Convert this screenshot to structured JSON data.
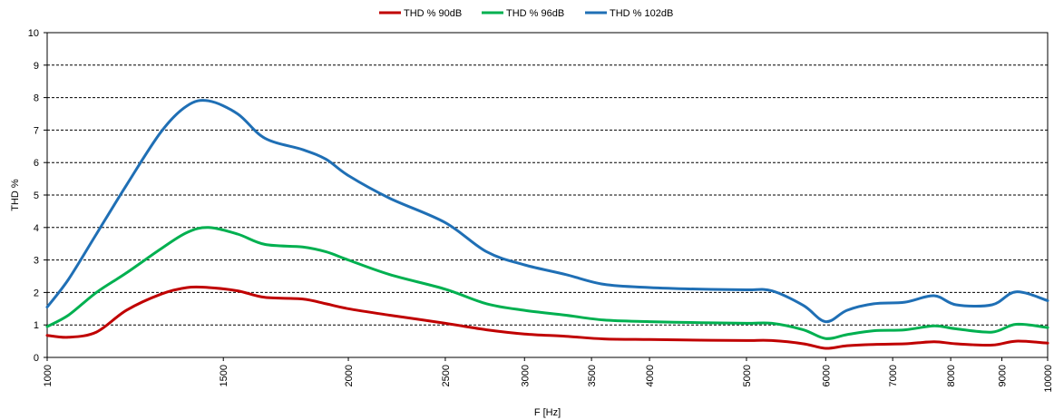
{
  "chart_data": {
    "type": "line",
    "xlabel": "F [Hz]",
    "ylabel": "THD %",
    "xscale": "log",
    "xlim": [
      1000,
      10000
    ],
    "ylim": [
      0,
      10
    ],
    "xticks": [
      1000,
      1500,
      2000,
      2500,
      3000,
      3500,
      4000,
      5000,
      6000,
      7000,
      8000,
      9000,
      10000
    ],
    "yticks": [
      0,
      1,
      2,
      3,
      4,
      5,
      6,
      7,
      8,
      9,
      10
    ],
    "grid": "horizontal dashed",
    "legend": "top-center",
    "series": [
      {
        "name": "THD % 90dB",
        "color": "#c00000",
        "points": [
          [
            1000,
            0.68
          ],
          [
            1050,
            0.62
          ],
          [
            1120,
            0.78
          ],
          [
            1200,
            1.45
          ],
          [
            1300,
            1.95
          ],
          [
            1380,
            2.15
          ],
          [
            1450,
            2.15
          ],
          [
            1550,
            2.05
          ],
          [
            1650,
            1.85
          ],
          [
            1800,
            1.8
          ],
          [
            1900,
            1.65
          ],
          [
            2000,
            1.5
          ],
          [
            2200,
            1.3
          ],
          [
            2500,
            1.05
          ],
          [
            2750,
            0.85
          ],
          [
            3000,
            0.72
          ],
          [
            3300,
            0.65
          ],
          [
            3600,
            0.57
          ],
          [
            4000,
            0.55
          ],
          [
            4500,
            0.53
          ],
          [
            5000,
            0.52
          ],
          [
            5300,
            0.52
          ],
          [
            5700,
            0.42
          ],
          [
            6000,
            0.28
          ],
          [
            6300,
            0.36
          ],
          [
            6700,
            0.4
          ],
          [
            7200,
            0.42
          ],
          [
            7700,
            0.48
          ],
          [
            8100,
            0.42
          ],
          [
            8800,
            0.38
          ],
          [
            9300,
            0.5
          ],
          [
            10000,
            0.44
          ]
        ]
      },
      {
        "name": "THD % 96dB",
        "color": "#00b050",
        "points": [
          [
            1000,
            0.95
          ],
          [
            1050,
            1.3
          ],
          [
            1120,
            2.0
          ],
          [
            1200,
            2.6
          ],
          [
            1300,
            3.35
          ],
          [
            1380,
            3.85
          ],
          [
            1450,
            4.0
          ],
          [
            1550,
            3.8
          ],
          [
            1650,
            3.48
          ],
          [
            1800,
            3.4
          ],
          [
            1900,
            3.25
          ],
          [
            2000,
            3.0
          ],
          [
            2200,
            2.55
          ],
          [
            2500,
            2.1
          ],
          [
            2750,
            1.65
          ],
          [
            3000,
            1.45
          ],
          [
            3300,
            1.3
          ],
          [
            3600,
            1.15
          ],
          [
            4000,
            1.1
          ],
          [
            4500,
            1.07
          ],
          [
            5000,
            1.05
          ],
          [
            5300,
            1.05
          ],
          [
            5700,
            0.85
          ],
          [
            6000,
            0.58
          ],
          [
            6300,
            0.7
          ],
          [
            6700,
            0.82
          ],
          [
            7200,
            0.85
          ],
          [
            7700,
            0.97
          ],
          [
            8100,
            0.88
          ],
          [
            8800,
            0.78
          ],
          [
            9300,
            1.02
          ],
          [
            10000,
            0.92
          ]
        ]
      },
      {
        "name": "THD % 102dB",
        "color": "#1f6fb5",
        "points": [
          [
            1000,
            1.55
          ],
          [
            1050,
            2.4
          ],
          [
            1120,
            3.8
          ],
          [
            1200,
            5.3
          ],
          [
            1300,
            6.95
          ],
          [
            1380,
            7.75
          ],
          [
            1450,
            7.9
          ],
          [
            1550,
            7.5
          ],
          [
            1650,
            6.75
          ],
          [
            1800,
            6.4
          ],
          [
            1900,
            6.1
          ],
          [
            2000,
            5.6
          ],
          [
            2200,
            4.9
          ],
          [
            2500,
            4.15
          ],
          [
            2750,
            3.25
          ],
          [
            3000,
            2.85
          ],
          [
            3300,
            2.55
          ],
          [
            3600,
            2.25
          ],
          [
            4000,
            2.15
          ],
          [
            4500,
            2.1
          ],
          [
            5000,
            2.08
          ],
          [
            5300,
            2.05
          ],
          [
            5700,
            1.6
          ],
          [
            6000,
            1.1
          ],
          [
            6300,
            1.45
          ],
          [
            6700,
            1.65
          ],
          [
            7200,
            1.7
          ],
          [
            7700,
            1.9
          ],
          [
            8100,
            1.62
          ],
          [
            8800,
            1.62
          ],
          [
            9300,
            2.02
          ],
          [
            10000,
            1.75
          ]
        ]
      }
    ]
  }
}
